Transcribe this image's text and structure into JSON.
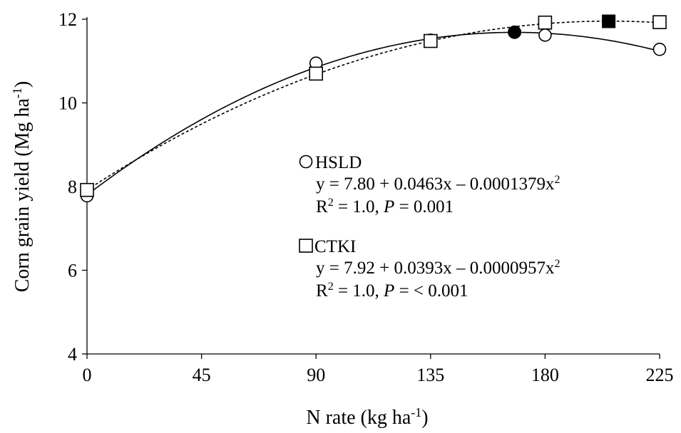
{
  "chart_data": {
    "type": "scatter",
    "xlabel": "N rate (kg ha",
    "xlabel_sup": "-1",
    "xlabel_end": ")",
    "ylabel": "Corn grain yield (Mg ha",
    "ylabel_sup": "-1",
    "ylabel_end": ")",
    "xlim": [
      0,
      225
    ],
    "ylim": [
      4,
      12
    ],
    "x_ticks": [
      0,
      45,
      90,
      135,
      180,
      225
    ],
    "y_ticks": [
      4,
      6,
      8,
      10,
      12
    ],
    "series": [
      {
        "name": "HSLD",
        "marker": "circle",
        "line": "solid",
        "x": [
          0,
          90,
          135,
          180,
          225
        ],
        "y": [
          7.78,
          10.95,
          11.5,
          11.62,
          11.28
        ],
        "fit": {
          "a": 7.8,
          "b": 0.0463,
          "c": -0.0001379
        },
        "optimum": {
          "x": 168,
          "y": 11.69
        },
        "equation": "y = 7.80 + 0.0463x – 0.0001379x",
        "equation_sup": "2",
        "r2_label": "R",
        "r2_sup": "2",
        "r2_rest": " = 1.0, ",
        "p_label": "P",
        "p_rest": " = 0.001"
      },
      {
        "name": "CTKI",
        "marker": "square",
        "line": "dashed",
        "x": [
          0,
          90,
          135,
          180,
          225
        ],
        "y": [
          7.92,
          10.7,
          11.48,
          11.92,
          11.93
        ],
        "fit": {
          "a": 7.92,
          "b": 0.0393,
          "c": -9.57e-05
        },
        "optimum": {
          "x": 205,
          "y": 11.95
        },
        "equation": "y = 7.92 + 0.0393x – 0.0000957x",
        "equation_sup": "2",
        "r2_label": "R",
        "r2_sup": "2",
        "r2_rest": " = 1.0, ",
        "p_label": "P",
        "p_rest": " = < 0.001"
      }
    ]
  }
}
